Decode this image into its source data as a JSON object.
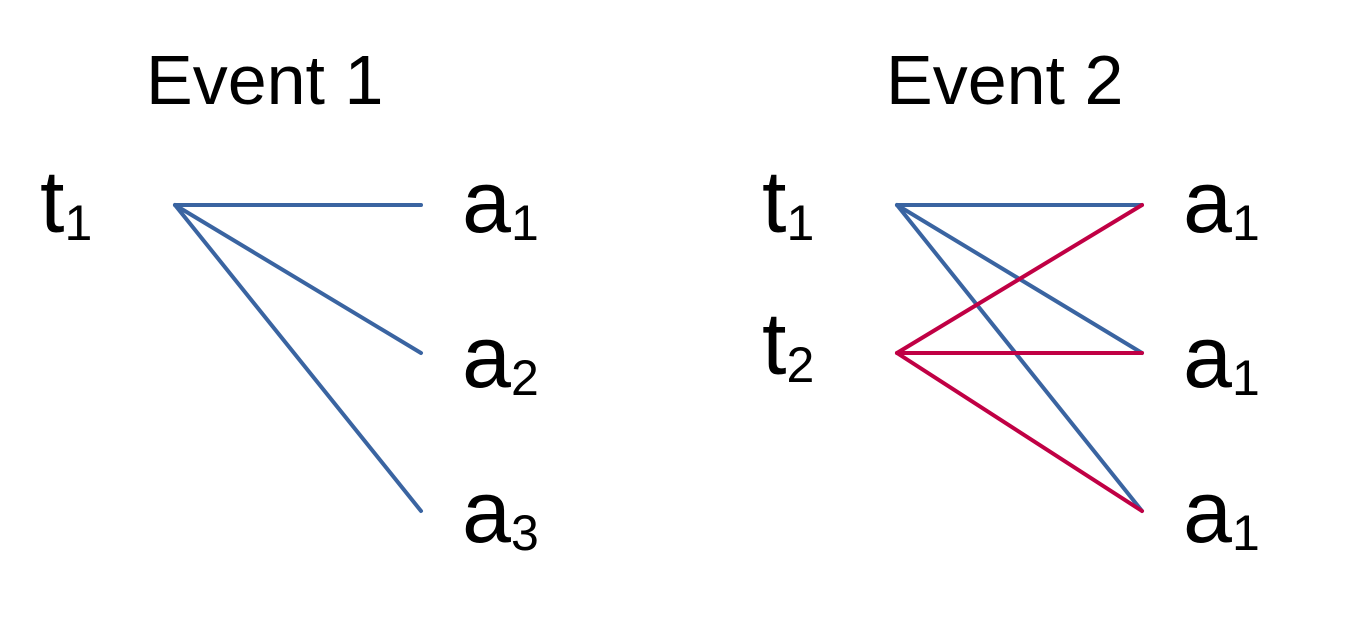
{
  "colors": {
    "blue": "#3a64a1",
    "red": "#c00044"
  },
  "events": [
    {
      "title": "Event 1",
      "left_nodes": [
        {
          "base": "t",
          "sub": "1"
        }
      ],
      "right_nodes": [
        {
          "base": "a",
          "sub": "1"
        },
        {
          "base": "a",
          "sub": "2"
        },
        {
          "base": "a",
          "sub": "3"
        }
      ],
      "edges": [
        {
          "from": 0,
          "to": 0,
          "color": "blue"
        },
        {
          "from": 0,
          "to": 1,
          "color": "blue"
        },
        {
          "from": 0,
          "to": 2,
          "color": "blue"
        }
      ]
    },
    {
      "title": "Event 2",
      "left_nodes": [
        {
          "base": "t",
          "sub": "1"
        },
        {
          "base": "t",
          "sub": "2"
        }
      ],
      "right_nodes": [
        {
          "base": "a",
          "sub": "1"
        },
        {
          "base": "a",
          "sub": "1"
        },
        {
          "base": "a",
          "sub": "1"
        }
      ],
      "edges": [
        {
          "from": 0,
          "to": 0,
          "color": "blue"
        },
        {
          "from": 0,
          "to": 1,
          "color": "blue"
        },
        {
          "from": 0,
          "to": 2,
          "color": "blue"
        },
        {
          "from": 1,
          "to": 0,
          "color": "red"
        },
        {
          "from": 1,
          "to": 1,
          "color": "red"
        },
        {
          "from": 1,
          "to": 2,
          "color": "red"
        }
      ]
    }
  ]
}
